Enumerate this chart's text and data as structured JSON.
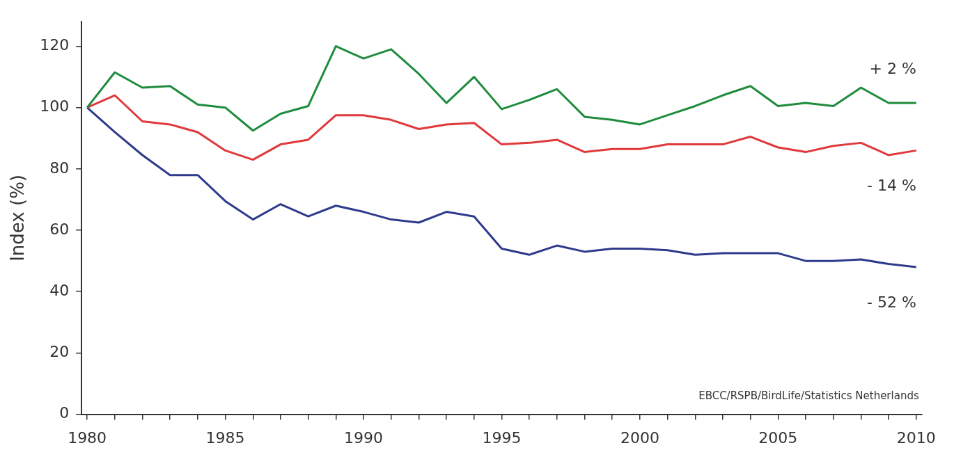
{
  "chart_data": {
    "type": "line",
    "ylabel": "Index (%)",
    "x": [
      1980,
      1981,
      1982,
      1983,
      1984,
      1985,
      1986,
      1987,
      1988,
      1989,
      1990,
      1991,
      1992,
      1993,
      1994,
      1995,
      1996,
      1997,
      1998,
      1999,
      2000,
      2001,
      2002,
      2003,
      2004,
      2005,
      2006,
      2007,
      2008,
      2009,
      2010
    ],
    "series": [
      {
        "color": "#1e8c3c",
        "values": [
          100,
          111.5,
          106.5,
          107,
          101,
          100,
          92.5,
          98,
          100.5,
          120,
          116,
          119,
          111,
          101.5,
          110,
          99.5,
          102.5,
          106,
          97,
          96,
          94.5,
          97.5,
          100.5,
          104,
          107,
          100.5,
          101.5,
          100.5,
          106.5,
          101.5,
          101.5
        ]
      },
      {
        "color": "#e0393b",
        "values": [
          100,
          104,
          95.5,
          94.5,
          92,
          86,
          83,
          88,
          89.5,
          97.5,
          97.5,
          96,
          93,
          94.5,
          95,
          88,
          88.5,
          89.5,
          85.5,
          86.5,
          86.5,
          88,
          88,
          88,
          90.5,
          87,
          85.5,
          87.5,
          88.5,
          84.5,
          86
        ]
      },
      {
        "color": "#2e3b8c",
        "values": [
          100,
          92,
          84.5,
          78,
          78,
          69.5,
          63.5,
          68.5,
          64.5,
          68,
          66,
          63.5,
          62.5,
          66,
          64.5,
          54,
          52,
          55,
          53,
          54,
          54,
          53.5,
          52,
          52.5,
          52.5,
          52.5,
          50,
          50,
          50.5,
          49,
          48
        ]
      }
    ],
    "xlim": [
      1979.8,
      2010.2
    ],
    "ylim": [
      0,
      128
    ],
    "xticks": [
      1980,
      {
        "value": 1981,
        "label": null
      },
      {
        "value": 1982,
        "label": null
      },
      {
        "value": 1983,
        "label": null
      },
      {
        "value": 1984,
        "label": null
      },
      1985,
      {
        "value": 1986,
        "label": null
      },
      {
        "value": 1987,
        "label": null
      },
      {
        "value": 1988,
        "label": null
      },
      {
        "value": 1989,
        "label": null
      },
      1990,
      {
        "value": 1991,
        "label": null
      },
      {
        "value": 1992,
        "label": null
      },
      {
        "value": 1993,
        "label": null
      },
      {
        "value": 1994,
        "label": null
      },
      1995,
      {
        "value": 1996,
        "label": null
      },
      {
        "value": 1997,
        "label": null
      },
      {
        "value": 1998,
        "label": null
      },
      {
        "value": 1999,
        "label": null
      },
      2000,
      {
        "value": 2001,
        "label": null
      },
      {
        "value": 2002,
        "label": null
      },
      {
        "value": 2003,
        "label": null
      },
      {
        "value": 2004,
        "label": null
      },
      2005,
      {
        "value": 2006,
        "label": null
      },
      {
        "value": 2007,
        "label": null
      },
      {
        "value": 2008,
        "label": null
      },
      {
        "value": 2009,
        "label": null
      },
      2010
    ],
    "yticks": [
      0,
      20,
      40,
      60,
      80,
      100,
      120
    ],
    "grid": false,
    "legend": false,
    "marker": "none",
    "line_style": "solid",
    "annotations": [
      "+ 2 %",
      "- 14 %",
      "- 52 %",
      "EBCC/RSPB/BirdLife/Statistics Netherlands"
    ]
  }
}
